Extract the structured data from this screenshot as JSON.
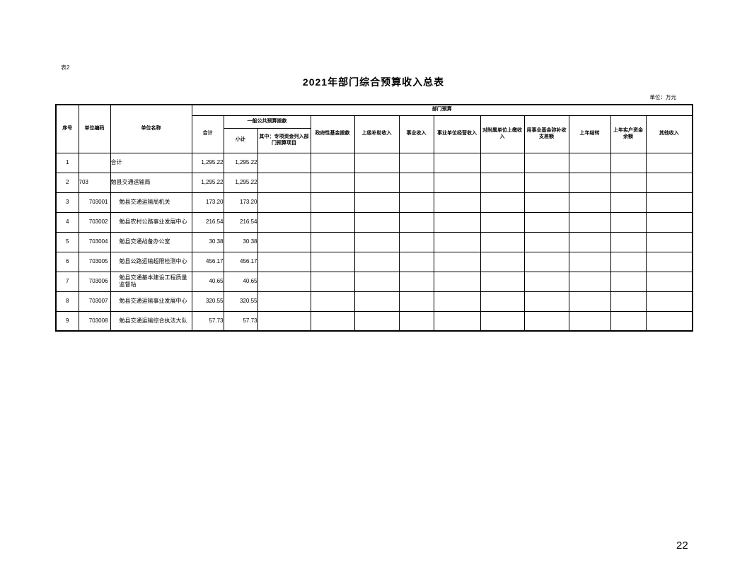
{
  "page": {
    "form_label": "表2",
    "title": "2021年部门综合预算收入总表",
    "unit_note": "单位：万元",
    "page_number": "22"
  },
  "table": {
    "headers": {
      "seq": "序号",
      "unit_code": "单位编码",
      "unit_name": "单位名称",
      "dept_budget": "部门预算",
      "total": "合计",
      "general_public_budget": "一般公共预算拨款",
      "subtotal": "小计",
      "special_funds": "其中：专项资金列入部门预算项目",
      "gov_fund_grant": "政府性基金拨款",
      "superior_subsidy_income": "上级补助收入",
      "business_income": "事业收入",
      "business_unit_operating_income": "事业单位经营收入",
      "affiliated_unit_paid_income": "对附属单位上缴收入",
      "business_fund_cover_gap": "用事业基金弥补收支差额",
      "prev_year_carryover": "上年结转",
      "prev_year_actual_account_balance": "上年实户资金余额",
      "other_income": "其他收入"
    },
    "rows": [
      {
        "seq": "1",
        "code": "",
        "name": "合计",
        "values": [
          "1,295.22",
          "1,295.22",
          "",
          "",
          "",
          "",
          "",
          "",
          "",
          "",
          "",
          ""
        ]
      },
      {
        "seq": "2",
        "code": "703",
        "name": "勉县交通运输局",
        "values": [
          "1,295.22",
          "1,295.22",
          "",
          "",
          "",
          "",
          "",
          "",
          "",
          "",
          "",
          ""
        ]
      },
      {
        "seq": "3",
        "code": "703001",
        "name": "勉县交通运输局机关",
        "values": [
          "173.20",
          "173.20",
          "",
          "",
          "",
          "",
          "",
          "",
          "",
          "",
          "",
          ""
        ]
      },
      {
        "seq": "4",
        "code": "703002",
        "name": "勉县农村公路事业发展中心",
        "values": [
          "216.54",
          "216.54",
          "",
          "",
          "",
          "",
          "",
          "",
          "",
          "",
          "",
          ""
        ]
      },
      {
        "seq": "5",
        "code": "703004",
        "name": "勉县交通战备办公室",
        "values": [
          "30.38",
          "30.38",
          "",
          "",
          "",
          "",
          "",
          "",
          "",
          "",
          "",
          ""
        ]
      },
      {
        "seq": "6",
        "code": "703005",
        "name": "勉县公路运输超限检测中心",
        "values": [
          "456.17",
          "456.17",
          "",
          "",
          "",
          "",
          "",
          "",
          "",
          "",
          "",
          ""
        ]
      },
      {
        "seq": "7",
        "code": "703006",
        "name": "勉县交通基本建设工程质量监督站",
        "values": [
          "40.65",
          "40.65",
          "",
          "",
          "",
          "",
          "",
          "",
          "",
          "",
          "",
          ""
        ]
      },
      {
        "seq": "8",
        "code": "703007",
        "name": "勉县交通运输事业发展中心",
        "values": [
          "320.55",
          "320.55",
          "",
          "",
          "",
          "",
          "",
          "",
          "",
          "",
          "",
          ""
        ]
      },
      {
        "seq": "9",
        "code": "703008",
        "name": "勉县交通运输综合执法大队",
        "values": [
          "57.73",
          "57.73",
          "",
          "",
          "",
          "",
          "",
          "",
          "",
          "",
          "",
          ""
        ]
      }
    ]
  }
}
